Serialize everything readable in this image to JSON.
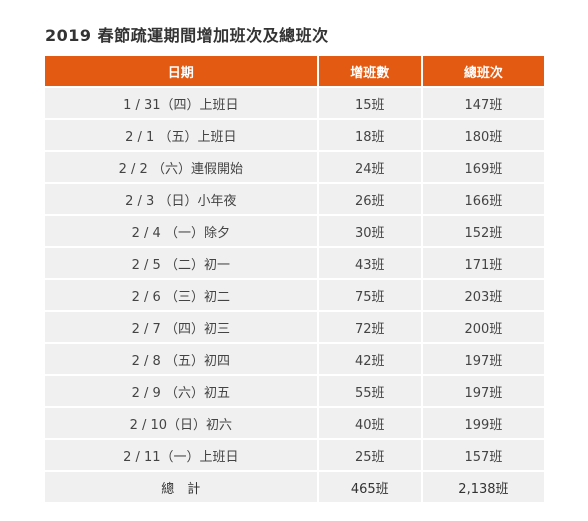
{
  "title": "2019 春節疏運期間增加班次及總班次",
  "table": {
    "headers": [
      "日期",
      "增班數",
      "總班次"
    ],
    "rows": [
      [
        "1 / 31（四）上班日",
        "15班",
        "147班"
      ],
      [
        "2 / 1 （五）上班日",
        "18班",
        "180班"
      ],
      [
        "2 / 2 （六）連假開始",
        "24班",
        "169班"
      ],
      [
        "2 / 3 （日）小年夜",
        "26班",
        "166班"
      ],
      [
        "2 / 4 （一）除夕",
        "30班",
        "152班"
      ],
      [
        "2 / 5 （二）初一",
        "43班",
        "171班"
      ],
      [
        "2 / 6 （三）初二",
        "75班",
        "203班"
      ],
      [
        "2 / 7 （四）初三",
        "72班",
        "200班"
      ],
      [
        "2 / 8 （五）初四",
        "42班",
        "197班"
      ],
      [
        "2 / 9 （六）初五",
        "55班",
        "197班"
      ],
      [
        "2 / 10（日）初六",
        "40班",
        "199班"
      ],
      [
        "2 / 11（一）上班日",
        "25班",
        "157班"
      ]
    ],
    "total": [
      "總　計",
      "465班",
      "2,138班"
    ]
  },
  "colors": {
    "header_bg": "#e35a12",
    "header_text": "#ffffff",
    "row_bg": "#f0f0f0"
  }
}
